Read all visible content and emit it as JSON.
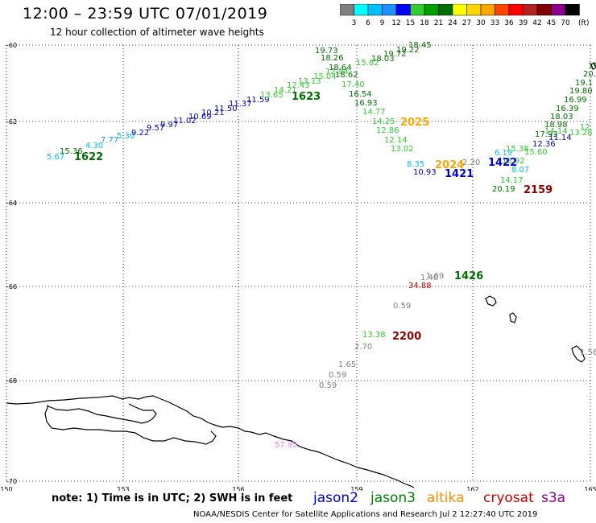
{
  "header": {
    "title": "12:00 – 23:59 UTC 07/01/2019",
    "subtitle": "12 hour collection of altimeter wave heights"
  },
  "colorbar": {
    "labels": [
      "3",
      "6",
      "9",
      "12",
      "15",
      "18",
      "21",
      "24",
      "27",
      "30",
      "33",
      "36",
      "39",
      "42",
      "45",
      "70"
    ],
    "unit": "(ft)",
    "colors": [
      "#808080",
      "#00ffff",
      "#00bfff",
      "#1e90ff",
      "#0000ff",
      "#32cd32",
      "#00a000",
      "#007000",
      "#ffff00",
      "#ffd700",
      "#ffa500",
      "#ff4500",
      "#ff0000",
      "#b22222",
      "#800000",
      "#8b008b",
      "#000000"
    ]
  },
  "axes": {
    "lat_labels": [
      "-60",
      "-62",
      "-64",
      "-66",
      "-68",
      "-70"
    ],
    "lon_labels": [
      "150",
      "153",
      "156",
      "159",
      "162",
      "165"
    ]
  },
  "passes": [
    {
      "text": "1622",
      "color": "#007000"
    },
    {
      "text": "1623",
      "color": "#007000"
    },
    {
      "text": "2025",
      "color": "#ffa500"
    },
    {
      "text": "2024",
      "color": "#ffa500"
    },
    {
      "text": "1421",
      "color": "#0000cd"
    },
    {
      "text": "1422",
      "color": "#0000cd"
    },
    {
      "text": "2159",
      "color": "#8b0000"
    },
    {
      "text": "1426",
      "color": "#007000"
    },
    {
      "text": "2200",
      "color": "#8b0000"
    }
  ],
  "wave_labels": [
    {
      "text": "5.67",
      "color": "#00bfff"
    },
    {
      "text": "15.36",
      "color": "#007000"
    },
    {
      "text": "4.30",
      "color": "#00bfff"
    },
    {
      "text": "7.77",
      "color": "#1e90ff"
    },
    {
      "text": "5.30",
      "color": "#00bfff"
    },
    {
      "text": "9.22",
      "color": "#0000cd"
    },
    {
      "text": "9.57",
      "color": "#0000cd"
    },
    {
      "text": "9.97",
      "color": "#0000cd"
    },
    {
      "text": "11.02",
      "color": "#0000cd"
    },
    {
      "text": "10.69",
      "color": "#0000cd"
    },
    {
      "text": "10.21",
      "color": "#0000cd"
    },
    {
      "text": "11.50",
      "color": "#0000cd"
    },
    {
      "text": "11.37",
      "color": "#0000cd"
    },
    {
      "text": "11.59",
      "color": "#0000cd"
    },
    {
      "text": "13.65",
      "color": "#32cd32"
    },
    {
      "text": "14.21",
      "color": "#32cd32"
    },
    {
      "text": "12.43",
      "color": "#32cd32"
    },
    {
      "text": "13.13",
      "color": "#32cd32"
    },
    {
      "text": "15.04",
      "color": "#32cd32"
    },
    {
      "text": "12.94",
      "color": "#32cd32"
    },
    {
      "text": "19.73",
      "color": "#007000"
    },
    {
      "text": "18.26",
      "color": "#007000"
    },
    {
      "text": "18.64",
      "color": "#007000"
    },
    {
      "text": "18.62",
      "color": "#007000"
    },
    {
      "text": "15.82",
      "color": "#32cd32"
    },
    {
      "text": "18.03",
      "color": "#007000"
    },
    {
      "text": "19.72",
      "color": "#007000"
    },
    {
      "text": "19.22",
      "color": "#007000"
    },
    {
      "text": "18.45",
      "color": "#007000"
    },
    {
      "text": "17.40",
      "color": "#32cd32"
    },
    {
      "text": "16.54",
      "color": "#007000"
    },
    {
      "text": "16.93",
      "color": "#007000"
    },
    {
      "text": "14.77",
      "color": "#32cd32"
    },
    {
      "text": "14.25",
      "color": "#32cd32"
    },
    {
      "text": "12.86",
      "color": "#32cd32"
    },
    {
      "text": "12.14",
      "color": "#32cd32"
    },
    {
      "text": "13.02",
      "color": "#32cd32"
    },
    {
      "text": "8.35",
      "color": "#00bfff"
    },
    {
      "text": "10.93",
      "color": "#0000cd"
    },
    {
      "text": "2.20",
      "color": "#808080"
    },
    {
      "text": "6.19",
      "color": "#00bfff"
    },
    {
      "text": "8.07",
      "color": "#00bfff"
    },
    {
      "text": "14.17",
      "color": "#32cd32"
    },
    {
      "text": "20.19",
      "color": "#007000"
    },
    {
      "text": "15.38",
      "color": "#32cd32"
    },
    {
      "text": "13.92",
      "color": "#32cd32"
    },
    {
      "text": "15.60",
      "color": "#32cd32"
    },
    {
      "text": "12.36",
      "color": "#0000cd"
    },
    {
      "text": "11.14",
      "color": "#0000cd"
    },
    {
      "text": "17.93",
      "color": "#007000"
    },
    {
      "text": "14.14",
      "color": "#32cd32"
    },
    {
      "text": "18.98",
      "color": "#007000"
    },
    {
      "text": "18.03",
      "color": "#007000"
    },
    {
      "text": "16.39",
      "color": "#007000"
    },
    {
      "text": "16.99",
      "color": "#007000"
    },
    {
      "text": "19.80",
      "color": "#007000"
    },
    {
      "text": "19.1",
      "color": "#007000"
    },
    {
      "text": "20.",
      "color": "#007000"
    },
    {
      "text": "19",
      "color": "#007000"
    },
    {
      "text": "13.28",
      "color": "#32cd32"
    },
    {
      "text": "12",
      "color": "#32cd32"
    },
    {
      "text": "1.69",
      "color": "#808080"
    },
    {
      "text": "1.40",
      "color": "#808080"
    },
    {
      "text": "34.88",
      "color": "#cc0000"
    },
    {
      "text": "0.59",
      "color": "#808080"
    },
    {
      "text": "13.38",
      "color": "#32cd32"
    },
    {
      "text": "2.70",
      "color": "#808080"
    },
    {
      "text": "1.65",
      "color": "#808080"
    },
    {
      "text": "0.59",
      "color": "#808080"
    },
    {
      "text": "0.59",
      "color": "#808080"
    },
    {
      "text": "1.56",
      "color": "#808080"
    },
    {
      "text": "57.95",
      "color": "#ee82ee"
    }
  ],
  "footer": {
    "note": "note: 1) Time is in UTC; 2) SWH is in feet",
    "credit": "NOAA/NESDIS Center for Satellite Applications and Research    Jul  2 12:27:40 UTC 2019",
    "satellites": [
      {
        "name": "jason2",
        "color": "#0000cd"
      },
      {
        "name": "jason3",
        "color": "#008000"
      },
      {
        "name": "altika",
        "color": "#ff8c00"
      },
      {
        "name": "cryosat",
        "color": "#cc0000"
      },
      {
        "name": "s3a",
        "color": "#8b008b"
      }
    ]
  }
}
